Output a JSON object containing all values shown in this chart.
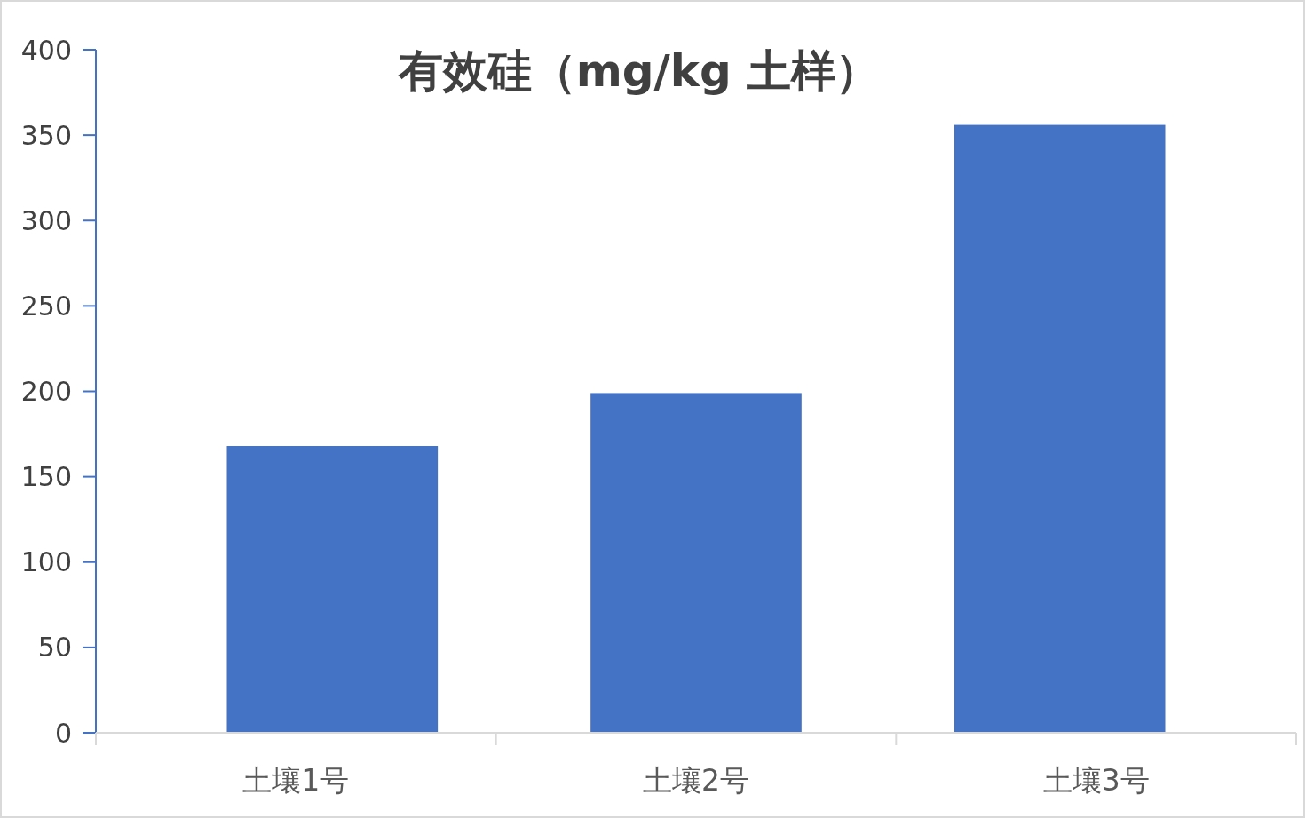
{
  "chart_data": {
    "type": "bar",
    "title": "有效硅（mg/kg 土样）",
    "categories": [
      "土壤1号",
      "土壤2号",
      "土壤3号"
    ],
    "values": [
      168,
      199,
      356
    ],
    "color": "#4472c4",
    "ylim": [
      0,
      400
    ],
    "yticks": [
      0,
      50,
      100,
      150,
      200,
      250,
      300,
      350,
      400
    ],
    "grid": false
  }
}
